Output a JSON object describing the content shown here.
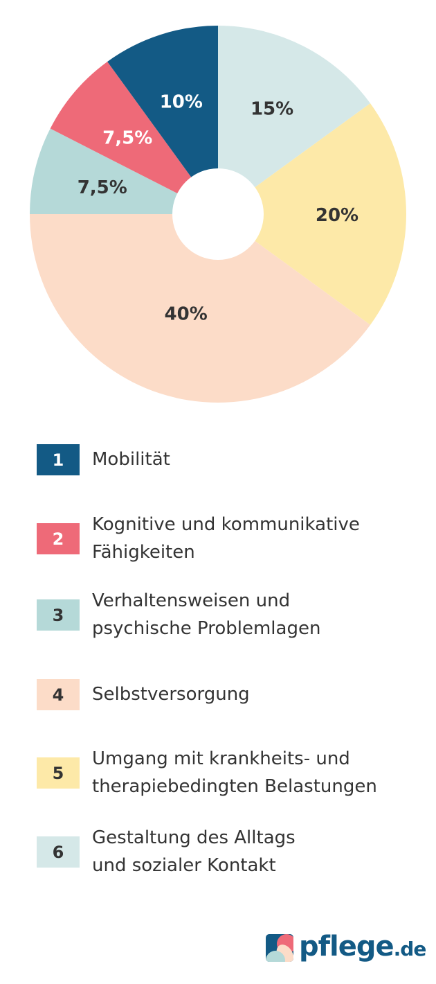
{
  "chart_data": {
    "type": "pie",
    "donut": true,
    "start": "top",
    "direction": "clockwise",
    "slices": [
      {
        "id": "6",
        "value": 15,
        "label": "15%",
        "color": "#d5e8e8",
        "label_color": "#333333"
      },
      {
        "id": "5",
        "value": 20,
        "label": "20%",
        "color": "#fde9a8",
        "label_color": "#333333"
      },
      {
        "id": "4",
        "value": 40,
        "label": "40%",
        "color": "#fcdcc8",
        "label_color": "#333333"
      },
      {
        "id": "3",
        "value": 7.5,
        "label": "7,5%",
        "color": "#b5d9d8",
        "label_color": "#333333"
      },
      {
        "id": "2",
        "value": 7.5,
        "label": "7,5%",
        "color": "#ee6a78",
        "label_color": "#ffffff"
      },
      {
        "id": "1",
        "value": 10,
        "label": "10%",
        "color": "#135a85",
        "label_color": "#ffffff"
      }
    ]
  },
  "legend": [
    {
      "num": "1",
      "text": "Mobilität",
      "color": "#135a85",
      "num_color": "#ffffff"
    },
    {
      "num": "2",
      "text": "Kognitive und kommunikative\nFähigkeiten",
      "color": "#ee6a78",
      "num_color": "#ffffff"
    },
    {
      "num": "3",
      "text": "Verhaltensweisen und\npsychische Problemlagen",
      "color": "#b5d9d8",
      "num_color": "#333333"
    },
    {
      "num": "4",
      "text": "Selbstversorgung",
      "color": "#fcdcc8",
      "num_color": "#333333"
    },
    {
      "num": "5",
      "text": "Umgang mit krankheits- und\ntherapiebedingten Belastungen",
      "color": "#fde9a8",
      "num_color": "#333333"
    },
    {
      "num": "6",
      "text": "Gestaltung des Alltags\nund sozialer Kontakt",
      "color": "#d5e8e8",
      "num_color": "#333333"
    }
  ],
  "logo": {
    "name": "pflege",
    "tld": ".de"
  }
}
